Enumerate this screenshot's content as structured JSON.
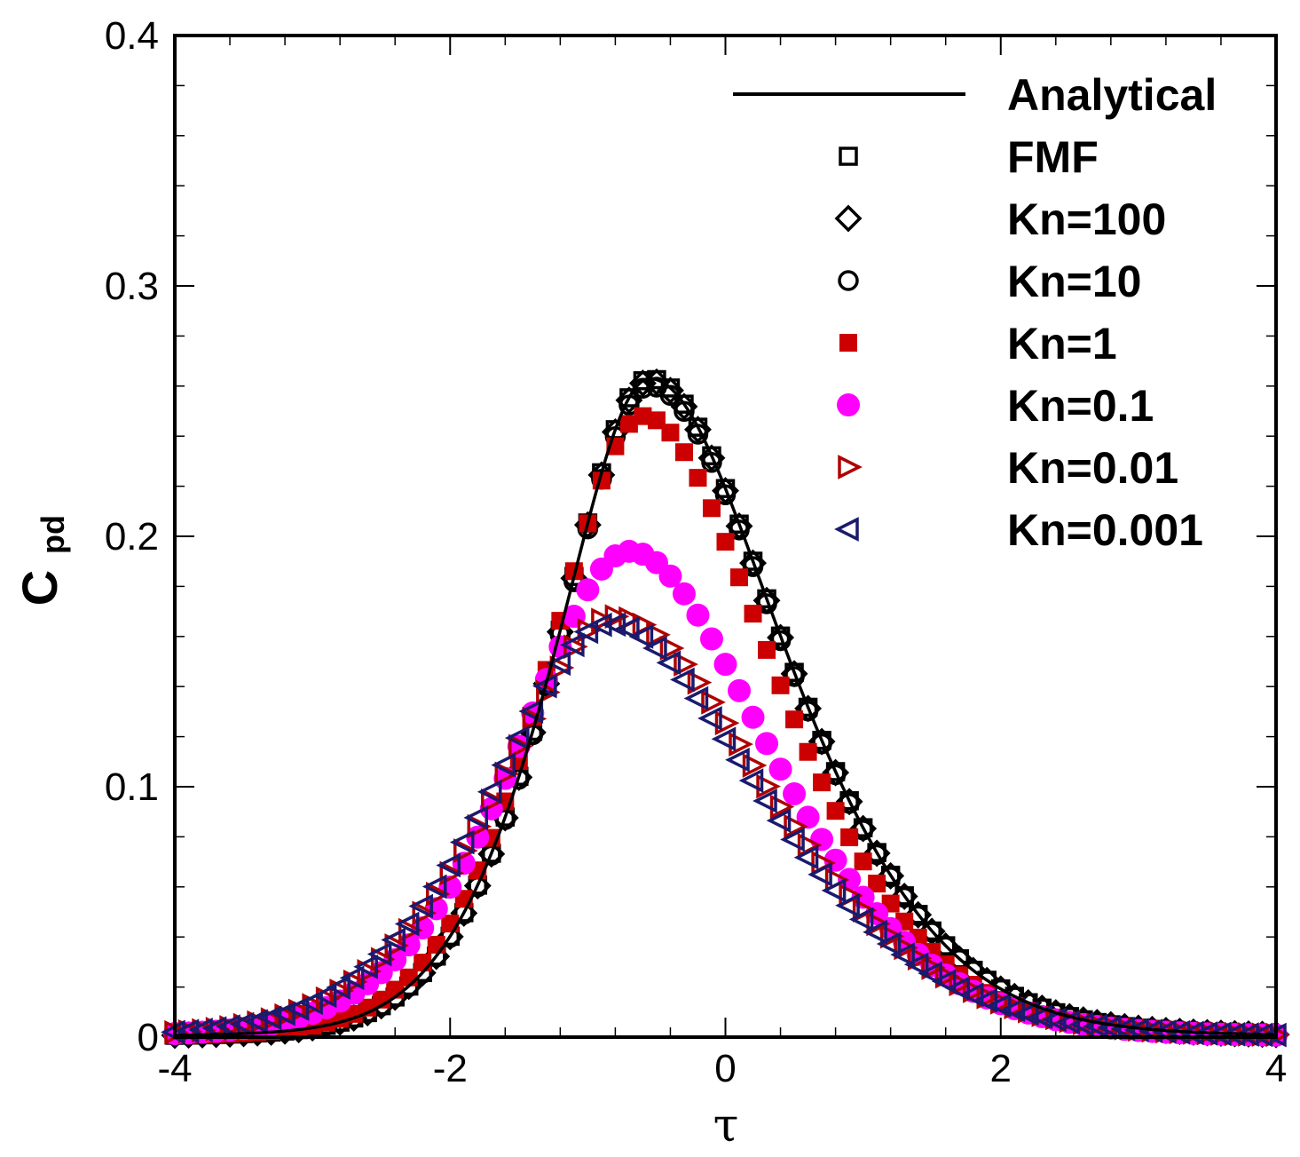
{
  "chart_data": {
    "type": "line",
    "title": "",
    "xlabel": "τ",
    "ylabel": "C",
    "ylabel_sub": "pd",
    "xlim": [
      -4,
      4
    ],
    "ylim": [
      0,
      0.4
    ],
    "x_ticks": [
      -4,
      -2,
      0,
      2,
      4
    ],
    "x_tick_labels": [
      "-4",
      "-2",
      "0",
      "2",
      "4"
    ],
    "y_ticks": [
      0,
      0.1,
      0.2,
      0.3,
      0.4
    ],
    "y_tick_labels": [
      "0",
      "0.1",
      "0.2",
      "0.3",
      "0.4"
    ],
    "grid": false,
    "legend_position": "top-right",
    "x_sampling": {
      "start": -4,
      "end": 4,
      "step": 0.1
    },
    "series": [
      {
        "name": "Analytical",
        "marker": "line",
        "color": "#000000",
        "peak_x": -0.55,
        "peak_y": 0.263,
        "sigma_left": 0.8,
        "sigma_right": 1.15,
        "tail": "exp"
      },
      {
        "name": "FMF",
        "marker": "square-open",
        "color": "#000000",
        "peak_x": -0.55,
        "peak_y": 0.263,
        "sigma_left": 0.8,
        "sigma_right": 1.15,
        "tail": "exp"
      },
      {
        "name": "Kn=100",
        "marker": "diamond-open",
        "color": "#000000",
        "peak_x": -0.55,
        "peak_y": 0.262,
        "sigma_left": 0.8,
        "sigma_right": 1.15,
        "tail": "exp"
      },
      {
        "name": "Kn=10",
        "marker": "circle-open",
        "color": "#000000",
        "peak_x": -0.55,
        "peak_y": 0.26,
        "sigma_left": 0.8,
        "sigma_right": 1.15,
        "tail": "exp"
      },
      {
        "name": "Kn=1",
        "marker": "square-filled",
        "color": "#cc0000",
        "peak_x": -0.6,
        "peak_y": 0.248,
        "sigma_left": 0.82,
        "sigma_right": 1.12,
        "tail": "exp"
      },
      {
        "name": "Kn=0.1",
        "marker": "circle-filled",
        "color": "#ff00ff",
        "peak_x": -0.7,
        "peak_y": 0.194,
        "sigma_left": 0.95,
        "sigma_right": 1.2,
        "tail": "exp"
      },
      {
        "name": "Kn=0.01",
        "marker": "triangle-right-open",
        "color": "#b00000",
        "peak_x": -0.8,
        "peak_y": 0.168,
        "sigma_left": 1.0,
        "sigma_right": 1.3,
        "tail": "exp"
      },
      {
        "name": "Kn=0.001",
        "marker": "triangle-left-open",
        "color": "#1a1a6e",
        "peak_x": -0.85,
        "peak_y": 0.165,
        "sigma_left": 1.0,
        "sigma_right": 1.3,
        "tail": "exp"
      }
    ]
  }
}
